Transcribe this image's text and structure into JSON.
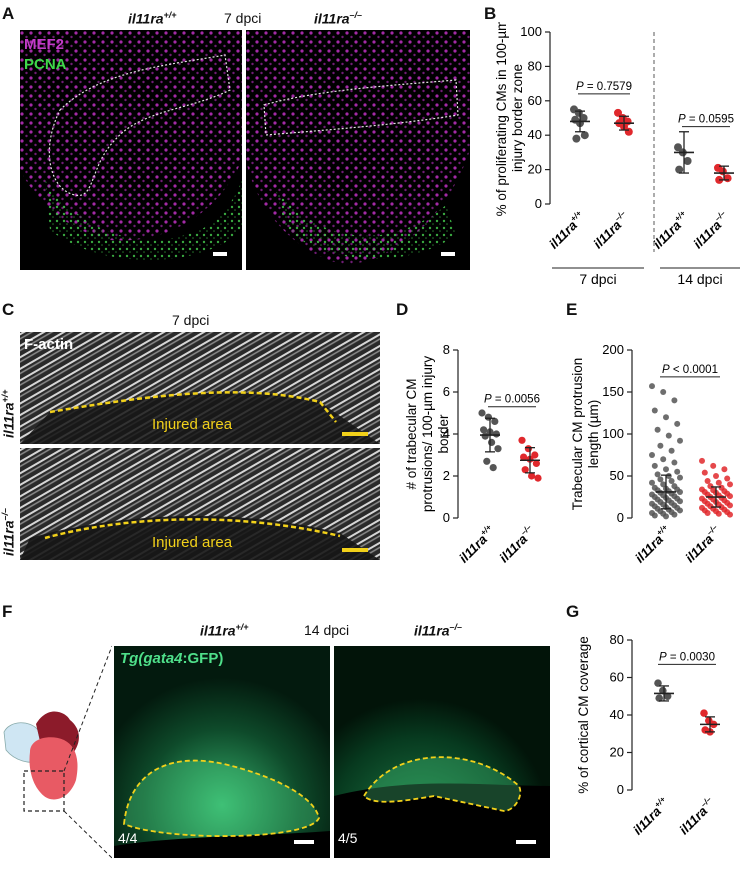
{
  "panels": {
    "A": {
      "letter": "A",
      "left_title": "il11ra",
      "left_sup": "+/+",
      "mid_title": "7 dpci",
      "right_title": "il11ra",
      "right_sup": "–/–",
      "stain1": "MEF2",
      "stain2": "PCNA",
      "colors": {
        "mef2": "#c23cc8",
        "pcna": "#3fd84a"
      }
    },
    "C": {
      "letter": "C",
      "title": "7 dpci",
      "stain": "F-actin",
      "row1_label": "il11ra",
      "row1_sup": "+/+",
      "row2_label": "il11ra",
      "row2_sup": "–/–",
      "injured1": "Injured area",
      "injured2": "Injured area",
      "colors": {
        "outline": "#f2d11a"
      }
    },
    "F": {
      "letter": "F",
      "left_title": "il11ra",
      "left_sup": "+/+",
      "mid_title": "14 dpci",
      "right_title": "il11ra",
      "right_sup": "–/–",
      "tg_prefix": "Tg(",
      "tg_gene": "gata4",
      "tg_suffix": ":GFP)",
      "count_left": "4/4",
      "count_right": "4/5",
      "colors": {
        "gfp": "#4fe08a",
        "outline": "#f2d11a"
      }
    }
  },
  "chart_data": [
    {
      "id": "B",
      "letter": "B",
      "type": "scatter",
      "ylabel": "% of proliferating CMs in 100-µm injury border zone",
      "ylim": [
        0,
        100
      ],
      "yticks": [
        0,
        20,
        40,
        60,
        80,
        100
      ],
      "tick_labels": [
        "il11ra+/+",
        "il11ra–/–",
        "il11ra+/+",
        "il11ra–/–"
      ],
      "groups": [
        "7 dpci",
        "14 dpci"
      ],
      "pvalues": [
        "P = 0.7579",
        "P = 0.0595"
      ],
      "series": [
        {
          "values": [
            55,
            53,
            50,
            49,
            47,
            40,
            38
          ],
          "mean": 48,
          "sd": 6,
          "color": "#555555"
        },
        {
          "values": [
            53,
            50,
            48,
            47,
            45,
            42
          ],
          "mean": 47,
          "sd": 4,
          "color": "#e0282c"
        },
        {
          "values": [
            33,
            30,
            25,
            20
          ],
          "mean": 30,
          "sd": 12,
          "color": "#555555"
        },
        {
          "values": [
            21,
            19,
            15,
            14
          ],
          "mean": 18,
          "sd": 4,
          "color": "#e0282c"
        }
      ]
    },
    {
      "id": "D",
      "letter": "D",
      "type": "scatter",
      "ylabel": "# of trabecular CM protrusions/ 100-µm injury border",
      "ylim": [
        0,
        8
      ],
      "yticks": [
        0,
        2,
        4,
        6,
        8
      ],
      "tick_labels": [
        "il11ra+/+",
        "il11ra–/–"
      ],
      "pvalues": [
        "P = 0.0056"
      ],
      "series": [
        {
          "values": [
            5.0,
            4.8,
            4.6,
            4.2,
            4.1,
            4.0,
            3.9,
            3.6,
            3.3,
            2.7,
            2.4
          ],
          "mean": 3.95,
          "sd": 0.8,
          "color": "#555555"
        },
        {
          "values": [
            3.7,
            3.3,
            3.0,
            2.9,
            2.8,
            2.6,
            2.3,
            2.0,
            1.9
          ],
          "mean": 2.75,
          "sd": 0.6,
          "color": "#e0282c"
        }
      ]
    },
    {
      "id": "E",
      "letter": "E",
      "type": "scatter",
      "ylabel": "Trabecular CM protrusion length (µm)",
      "ylim": [
        0,
        200
      ],
      "yticks": [
        0,
        50,
        100,
        150,
        200
      ],
      "tick_labels": [
        "il11ra+/+",
        "il11ra–/–"
      ],
      "pvalues": [
        "P < 0.0001"
      ],
      "series": [
        {
          "values": [
            157,
            150,
            140,
            128,
            120,
            112,
            105,
            98,
            92,
            86,
            80,
            75,
            70,
            66,
            62,
            58,
            55,
            52,
            50,
            48,
            46,
            44,
            42,
            40,
            38,
            36,
            35,
            34,
            33,
            32,
            31,
            30,
            29,
            28,
            27,
            26,
            25,
            24,
            23,
            22,
            21,
            20,
            19,
            18,
            17,
            16,
            15,
            14,
            13,
            12,
            11,
            10,
            9,
            8,
            7,
            6,
            5,
            4,
            3,
            2
          ],
          "mean": 31,
          "sd": 20,
          "color": "#555555"
        },
        {
          "values": [
            68,
            62,
            58,
            54,
            50,
            47,
            44,
            42,
            40,
            38,
            36,
            34,
            33,
            32,
            31,
            30,
            29,
            28,
            27,
            26,
            25,
            24,
            23,
            22,
            21,
            20,
            19,
            18,
            17,
            16,
            15,
            14,
            13,
            12,
            11,
            10,
            9,
            8,
            7,
            6,
            5,
            4
          ],
          "mean": 25,
          "sd": 12,
          "color": "#e0282c"
        }
      ]
    },
    {
      "id": "G",
      "letter": "G",
      "type": "scatter",
      "ylabel": "% of cortical CM coverage",
      "ylim": [
        0,
        80
      ],
      "yticks": [
        0,
        20,
        40,
        60,
        80
      ],
      "tick_labels": [
        "il11ra+/+",
        "il11ra–/–"
      ],
      "pvalues": [
        "P = 0.0030"
      ],
      "series": [
        {
          "values": [
            57,
            53,
            50,
            49
          ],
          "mean": 51.5,
          "sd": 4,
          "color": "#555555"
        },
        {
          "values": [
            41,
            37,
            35,
            32,
            31
          ],
          "mean": 35,
          "sd": 4,
          "color": "#e0282c"
        }
      ]
    }
  ]
}
